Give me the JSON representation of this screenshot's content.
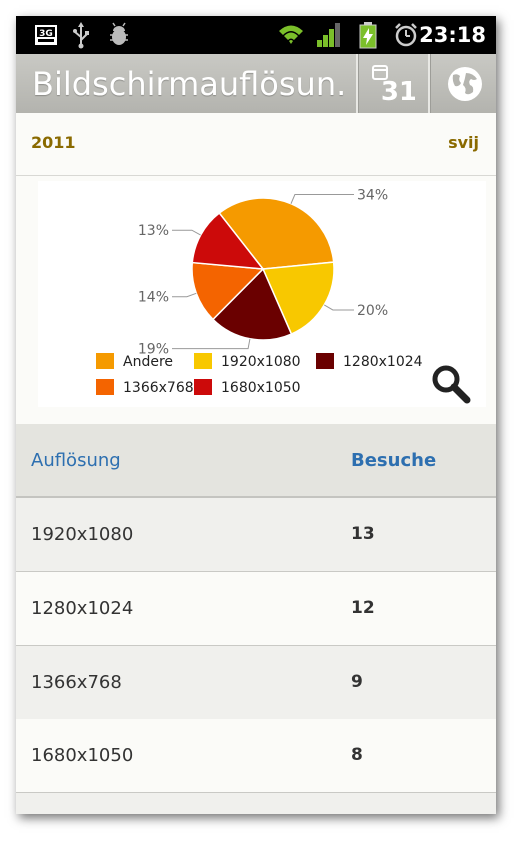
{
  "statusbar": {
    "network": "3G",
    "time": "23:18"
  },
  "titlebar": {
    "title": "Bildschirmauflösun...",
    "calendar_day": "31"
  },
  "period": {
    "year": "2011",
    "label": "svij"
  },
  "chart_data": {
    "type": "pie",
    "categories": [
      "Andere",
      "1920x1080",
      "1280x1024",
      "1366x768",
      "1680x1050"
    ],
    "values": [
      34,
      20,
      19,
      14,
      13
    ],
    "labels": [
      "34%",
      "20%",
      "19%",
      "14%",
      "13%"
    ],
    "colors": [
      "#f59a00",
      "#f8c800",
      "#6a0000",
      "#f46400",
      "#cc0a0a"
    ],
    "legend_placement": "bottom"
  },
  "table": {
    "headers": [
      "Auflösung",
      "Besuche"
    ],
    "rows": [
      {
        "resolution": "1920x1080",
        "visits": "13"
      },
      {
        "resolution": "1280x1024",
        "visits": "12"
      },
      {
        "resolution": "1366x768",
        "visits": "9"
      },
      {
        "resolution": "1680x1050",
        "visits": "8"
      }
    ]
  },
  "icons": [
    "usb-icon",
    "debug-icon",
    "wifi-icon",
    "signal-icon",
    "battery-charging-icon",
    "alarm-icon",
    "calendar-icon",
    "globe-icon",
    "zoom-icon"
  ]
}
